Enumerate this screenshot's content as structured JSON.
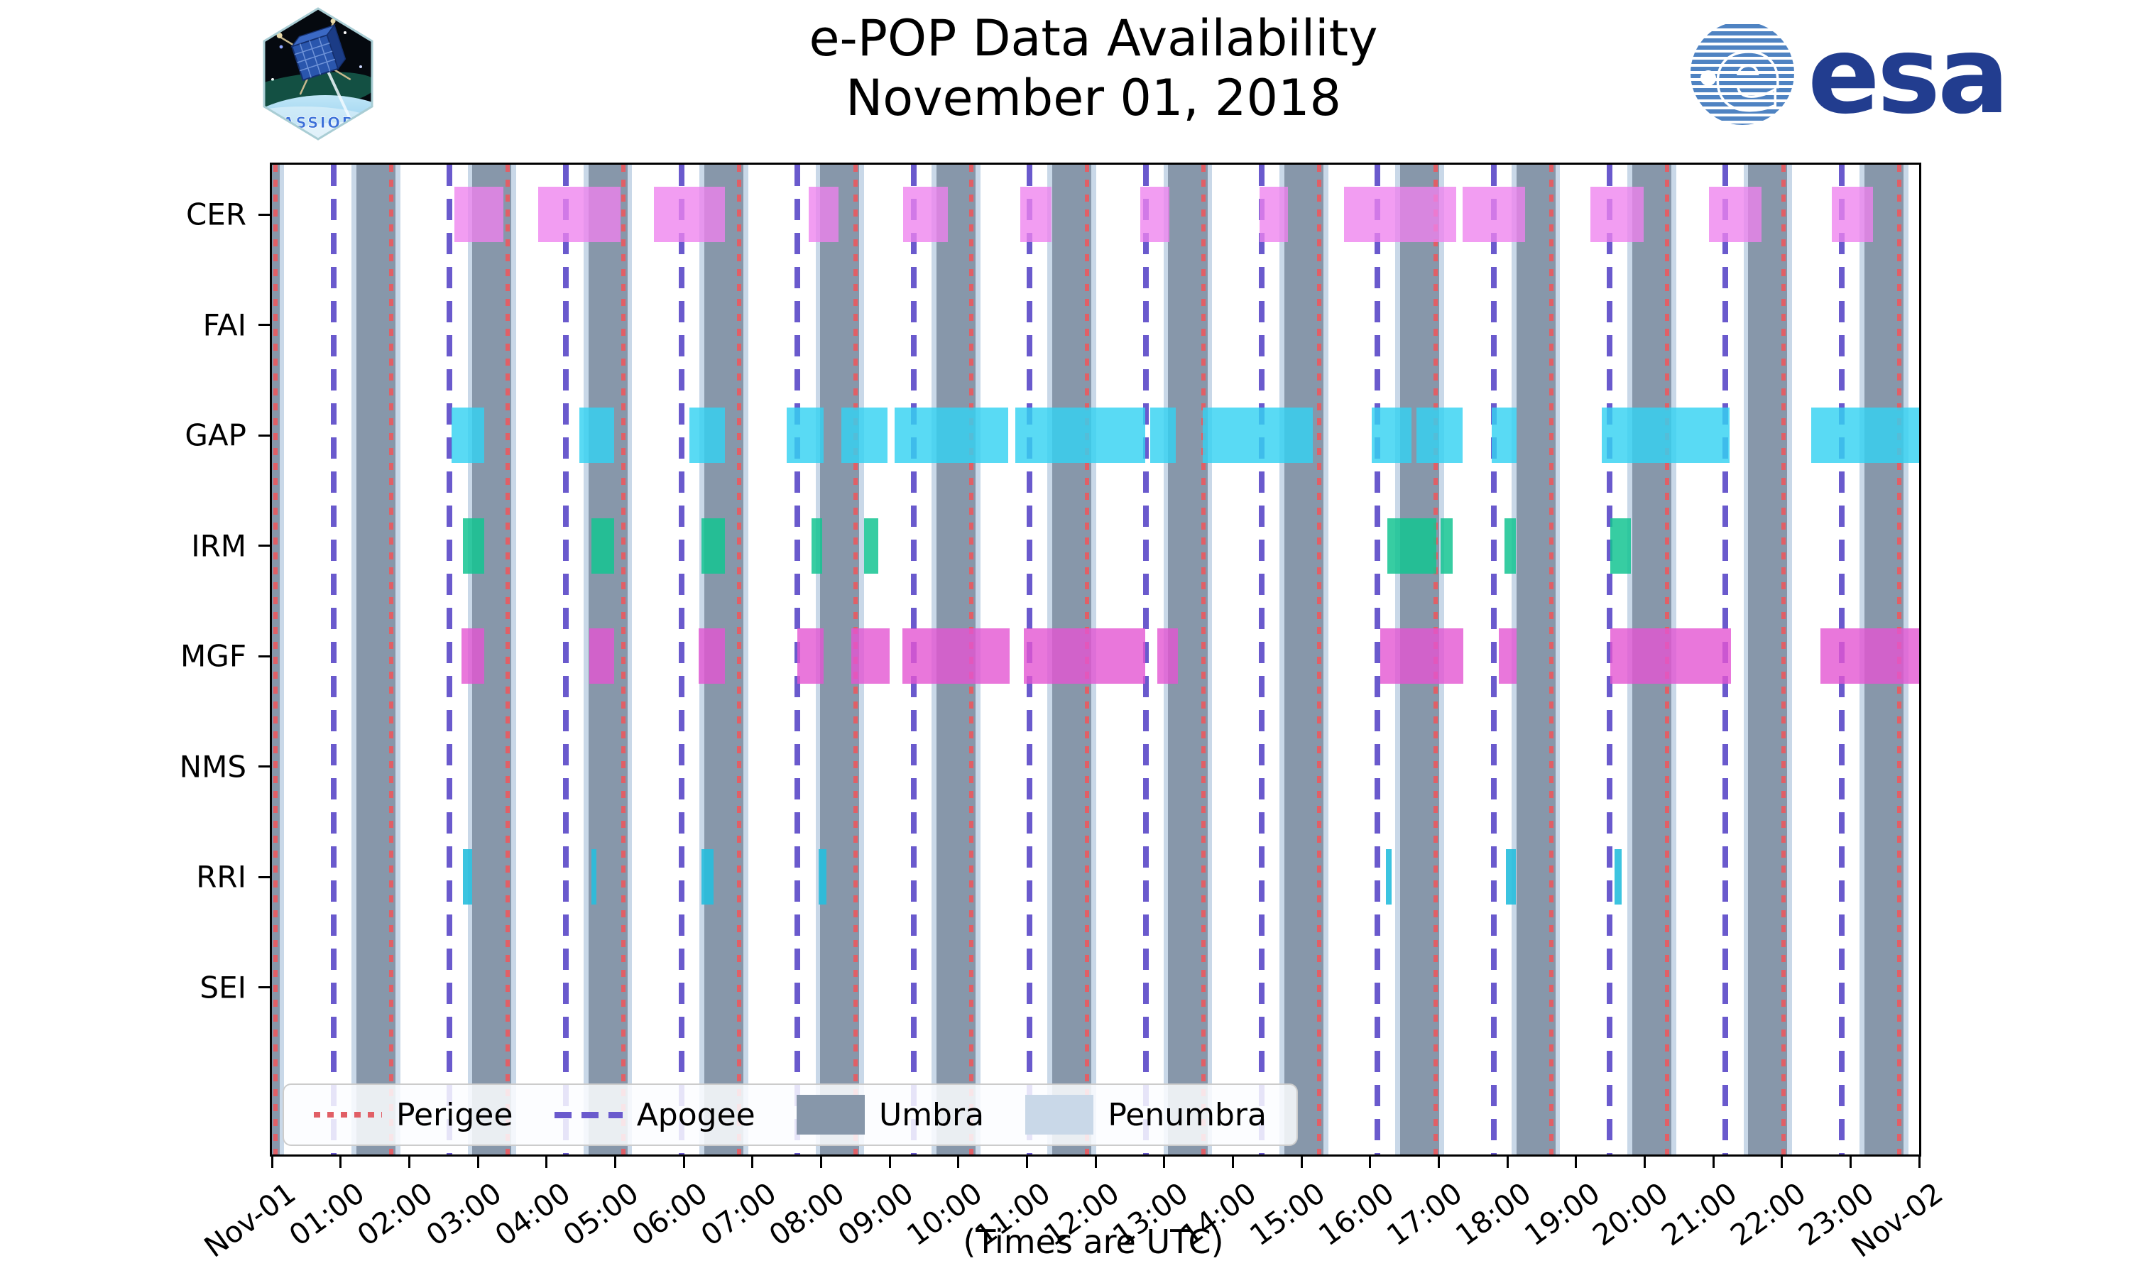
{
  "header": {
    "title_line1": "e-POP Data Availability",
    "title_line2": "November 01, 2018",
    "cassiope_label": "CASSIOPE",
    "esa_wordmark": "esa"
  },
  "axis": {
    "x_caption": "(Times are UTC)",
    "x_ticks": [
      {
        "t": 0,
        "label": "Nov-01"
      },
      {
        "t": 1,
        "label": "01:00"
      },
      {
        "t": 2,
        "label": "02:00"
      },
      {
        "t": 3,
        "label": "03:00"
      },
      {
        "t": 4,
        "label": "04:00"
      },
      {
        "t": 5,
        "label": "05:00"
      },
      {
        "t": 6,
        "label": "06:00"
      },
      {
        "t": 7,
        "label": "07:00"
      },
      {
        "t": 8,
        "label": "08:00"
      },
      {
        "t": 9,
        "label": "09:00"
      },
      {
        "t": 10,
        "label": "10:00"
      },
      {
        "t": 11,
        "label": "11:00"
      },
      {
        "t": 12,
        "label": "12:00"
      },
      {
        "t": 13,
        "label": "13:00"
      },
      {
        "t": 14,
        "label": "14:00"
      },
      {
        "t": 15,
        "label": "15:00"
      },
      {
        "t": 16,
        "label": "16:00"
      },
      {
        "t": 17,
        "label": "17:00"
      },
      {
        "t": 18,
        "label": "18:00"
      },
      {
        "t": 19,
        "label": "19:00"
      },
      {
        "t": 20,
        "label": "20:00"
      },
      {
        "t": 21,
        "label": "21:00"
      },
      {
        "t": 22,
        "label": "22:00"
      },
      {
        "t": 23,
        "label": "23:00"
      },
      {
        "t": 24,
        "label": "Nov-02"
      }
    ]
  },
  "legend": [
    {
      "label": "Perigee",
      "type": "dotted",
      "color": "#e15f66"
    },
    {
      "label": "Apogee",
      "type": "dashed",
      "color": "#6a5acd"
    },
    {
      "label": "Umbra",
      "type": "patch",
      "color": "#8797aa"
    },
    {
      "label": "Penumbra",
      "type": "patch",
      "color": "#c9d8e8"
    }
  ],
  "chart_data": {
    "type": "timeline",
    "title": "e-POP Data Availability November 01, 2018",
    "x_unit": "hours UTC",
    "x_range_hours": [
      0,
      24
    ],
    "instruments": [
      "CER",
      "FAI",
      "GAP",
      "IRM",
      "MGF",
      "NMS",
      "RRI",
      "SEI"
    ],
    "perigee_hours": [
      0.05,
      1.74,
      3.43,
      5.12,
      6.81,
      8.5,
      10.19,
      11.88,
      13.57,
      15.26,
      16.95,
      18.64,
      20.33,
      22.02,
      23.71
    ],
    "apogee_hours": [
      0.9,
      2.59,
      4.28,
      5.97,
      7.66,
      9.35,
      11.04,
      12.73,
      14.42,
      16.11,
      17.8,
      19.49,
      21.18,
      22.87
    ],
    "umbra_intervals": [
      [
        0,
        0.11
      ],
      [
        1.23,
        1.8
      ],
      [
        2.92,
        3.49
      ],
      [
        4.61,
        5.18
      ],
      [
        6.3,
        6.87
      ],
      [
        7.99,
        8.56
      ],
      [
        9.68,
        10.25
      ],
      [
        11.37,
        11.94
      ],
      [
        13.06,
        13.63
      ],
      [
        14.75,
        15.32
      ],
      [
        16.44,
        17.01
      ],
      [
        18.13,
        18.7
      ],
      [
        19.82,
        20.39
      ],
      [
        21.51,
        22.08
      ],
      [
        23.2,
        23.77
      ]
    ],
    "penumbra_margin_hours": 0.07,
    "rows": [
      {
        "name": "CER",
        "color": "#ee82ee",
        "opacity": 0.78,
        "intervals": [
          [
            2.66,
            3.37
          ],
          [
            3.88,
            5.08
          ],
          [
            5.57,
            6.6
          ],
          [
            7.82,
            8.26
          ],
          [
            9.2,
            9.85
          ],
          [
            10.9,
            11.36
          ],
          [
            12.65,
            13.08
          ],
          [
            14.39,
            14.8
          ],
          [
            15.62,
            17.26
          ],
          [
            17.35,
            18.26
          ],
          [
            19.21,
            19.99
          ],
          [
            20.94,
            21.7
          ],
          [
            22.73,
            23.33
          ]
        ]
      },
      {
        "name": "FAI",
        "color": "#aaaaaa",
        "opacity": 0.8,
        "intervals": []
      },
      {
        "name": "GAP",
        "color": "#35d2f2",
        "opacity": 0.82,
        "intervals": [
          [
            2.62,
            3.09
          ],
          [
            4.48,
            4.99
          ],
          [
            6.08,
            6.6
          ],
          [
            7.5,
            8.04
          ],
          [
            8.3,
            8.97
          ],
          [
            9.07,
            10.73
          ],
          [
            10.83,
            12.72
          ],
          [
            12.8,
            13.17
          ],
          [
            13.56,
            15.17
          ],
          [
            16.02,
            16.6
          ],
          [
            16.68,
            17.35
          ],
          [
            17.77,
            18.13
          ],
          [
            19.38,
            21.24
          ],
          [
            22.43,
            24.0
          ]
        ]
      },
      {
        "name": "IRM",
        "color": "#14c492",
        "opacity": 0.85,
        "intervals": [
          [
            2.78,
            3.09
          ],
          [
            4.65,
            4.99
          ],
          [
            6.26,
            6.6
          ],
          [
            7.86,
            8.02
          ],
          [
            8.63,
            8.83
          ],
          [
            16.25,
            16.97
          ],
          [
            17.03,
            17.2
          ],
          [
            17.96,
            18.12
          ],
          [
            19.5,
            19.8
          ]
        ]
      },
      {
        "name": "MGF",
        "color": "#e455d2",
        "opacity": 0.8,
        "intervals": [
          [
            2.76,
            3.09
          ],
          [
            4.62,
            4.99
          ],
          [
            6.22,
            6.6
          ],
          [
            7.66,
            8.04
          ],
          [
            8.44,
            9.0
          ],
          [
            9.19,
            10.75
          ],
          [
            10.96,
            12.72
          ],
          [
            12.9,
            13.2
          ],
          [
            16.15,
            17.36
          ],
          [
            17.88,
            18.13
          ],
          [
            19.5,
            21.26
          ],
          [
            22.56,
            24.0
          ]
        ]
      },
      {
        "name": "NMS",
        "color": "#aaaaaa",
        "opacity": 0.8,
        "intervals": []
      },
      {
        "name": "RRI",
        "color": "#27bedd",
        "opacity": 0.9,
        "intervals": [
          [
            2.78,
            2.92
          ],
          [
            4.65,
            4.73
          ],
          [
            6.26,
            6.43
          ],
          [
            7.97,
            8.08
          ],
          [
            16.23,
            16.31
          ],
          [
            17.98,
            18.12
          ],
          [
            19.56,
            19.67
          ]
        ]
      },
      {
        "name": "SEI",
        "color": "#aaaaaa",
        "opacity": 0.8,
        "intervals": []
      }
    ]
  }
}
